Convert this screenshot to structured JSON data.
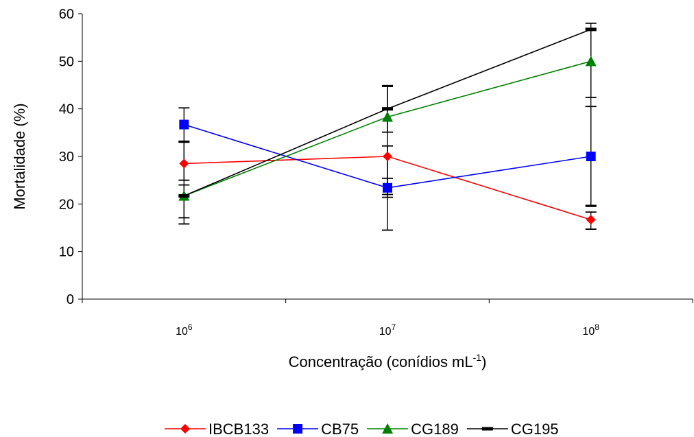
{
  "chart_data": {
    "type": "line",
    "title": "",
    "xlabel": "Concentração (conídios mL",
    "xlabel_sup": "-1",
    "xlabel_end": ")",
    "ylabel": "Mortalidade (%)",
    "ylim": [
      0,
      60
    ],
    "yticks": [
      "0",
      "10",
      "20",
      "30",
      "40",
      "50",
      "60"
    ],
    "categories": [
      {
        "base": "10",
        "exp": "6"
      },
      {
        "base": "10",
        "exp": "7"
      },
      {
        "base": "10",
        "exp": "8"
      }
    ],
    "legend_position": "bottom",
    "grid": false,
    "series": [
      {
        "name": "IBCB133",
        "color": "#ff0000",
        "marker": "diamond",
        "values": [
          28.5,
          30,
          16.7
        ],
        "err_low": [
          3.5,
          8,
          2
        ],
        "err_high": [
          4.5,
          2.2,
          1.6
        ]
      },
      {
        "name": "CB75",
        "color": "#0000ff",
        "marker": "square",
        "values": [
          36.7,
          23.4,
          30
        ],
        "err_low": [
          3.5,
          2,
          10.5
        ],
        "err_high": [
          3.5,
          2,
          10.5
        ]
      },
      {
        "name": "CG189",
        "color": "#008000",
        "marker": "triangle",
        "values": [
          21.7,
          38.3,
          50
        ],
        "err_low": [
          4.6,
          3.2,
          7.6
        ],
        "err_high": [
          11.3,
          6.4,
          6.8
        ]
      },
      {
        "name": "CG195",
        "color": "#000000",
        "marker": "dash",
        "values": [
          21.7,
          40,
          56.7
        ],
        "err_low": [
          5.9,
          25.5,
          37
        ],
        "err_high": [
          2.3,
          4.9,
          1.3
        ]
      }
    ]
  }
}
